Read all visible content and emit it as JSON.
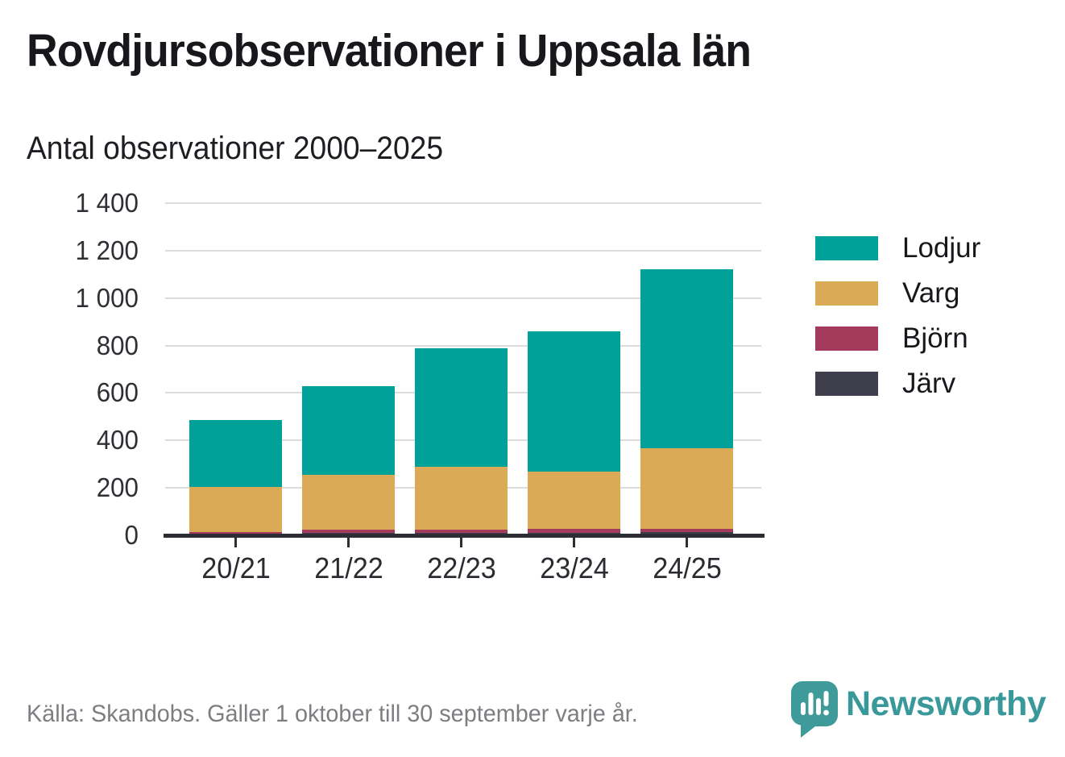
{
  "header": {
    "title": "Rovdjursobservationer i Uppsala län",
    "subtitle": "Antal observationer 2000–2025"
  },
  "footer": {
    "source": "Källa: Skandobs. Gäller 1 oktober till 30 september varje år.",
    "brand": "Newsworthy",
    "logo_icon": "newsworthy-speech-bubble-bar-chart"
  },
  "colors": {
    "lodjur": "#00A199",
    "varg": "#DBAA57",
    "bjorn": "#A53B5C",
    "jarv": "#3E3E4D",
    "axis": "#2D2D35",
    "grid": "#DCDCDC",
    "text_dark": "#17171C",
    "text_gray": "#7E7E82",
    "brand_teal": "#39989A"
  },
  "chart_data": {
    "type": "bar",
    "stacked": true,
    "title": "Rovdjursobservationer i Uppsala län",
    "subtitle": "Antal observationer 2000–2025",
    "xlabel": "",
    "ylabel": "Antal observationer",
    "categories": [
      "20/21",
      "21/22",
      "22/23",
      "23/24",
      "24/25"
    ],
    "series": [
      {
        "name": "Lodjur",
        "color": "#00A199",
        "values": [
          280,
          375,
          500,
          592,
          752
        ]
      },
      {
        "name": "Varg",
        "color": "#DBAA57",
        "values": [
          190,
          230,
          265,
          241,
          340
        ]
      },
      {
        "name": "Björn",
        "color": "#A53B5C",
        "values": [
          10,
          15,
          15,
          17,
          16
        ]
      },
      {
        "name": "Järv",
        "color": "#3E3E4D",
        "values": [
          5,
          10,
          10,
          10,
          12
        ]
      }
    ],
    "stack_bottom_to_top": [
      "Järv",
      "Björn",
      "Varg",
      "Lodjur"
    ],
    "totals": [
      485,
      630,
      790,
      860,
      1120
    ],
    "ylim": [
      0,
      1400
    ],
    "yticks": [
      0,
      200,
      400,
      600,
      800,
      1000,
      1200,
      1400
    ],
    "ytick_labels": [
      "0",
      "200",
      "400",
      "600",
      "800",
      "1 000",
      "1 200",
      "1 400"
    ],
    "grid": "horizontal",
    "legend_position": "right",
    "legend": [
      "Lodjur",
      "Varg",
      "Björn",
      "Järv"
    ]
  }
}
